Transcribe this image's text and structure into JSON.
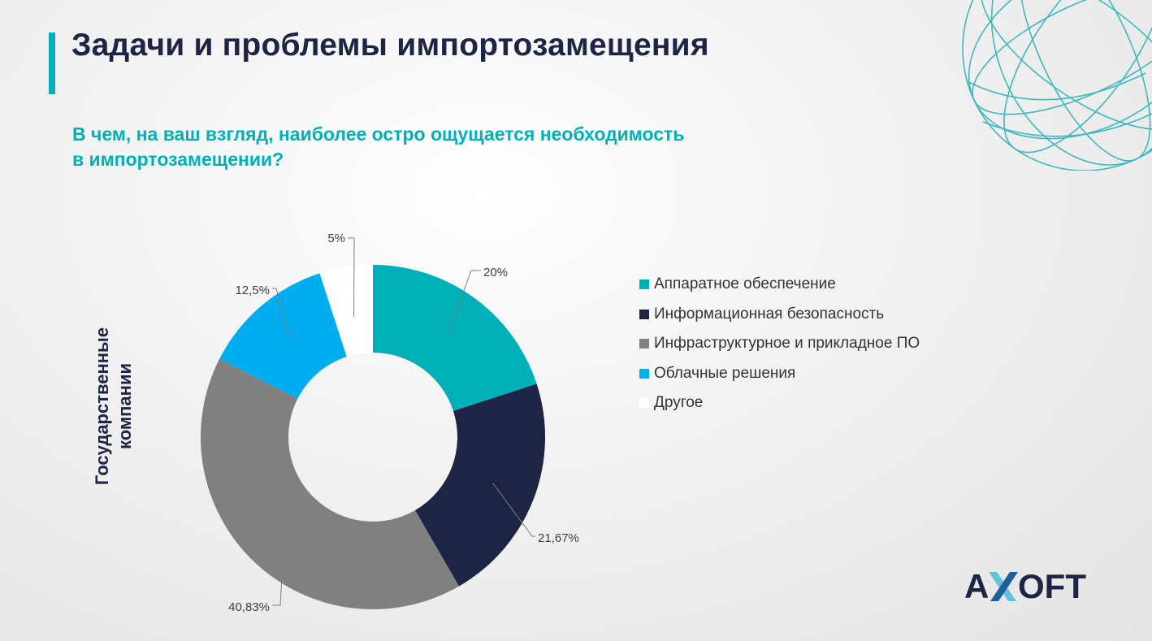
{
  "title": "Задачи и проблемы импортозамещения",
  "question": [
    "В чем, на ваш взгляд, наиболее остро ощущается необходимость",
    "в импортозамещении?"
  ],
  "side_label": [
    "Государственные",
    "компании"
  ],
  "logo_text": "AXOFT",
  "colors": {
    "accent": "#00b0b9",
    "title": "#1e2544",
    "logo_x_light": "#5fc5d6",
    "logo_x_dark": "#1e5f9e"
  },
  "chart_data": {
    "type": "pie",
    "donut": true,
    "start_angle_deg": 0,
    "direction": "clockwise",
    "slices": [
      {
        "label": "Аппаратное обеспечение",
        "value": 20,
        "display": "20%",
        "color": "#00b0b9"
      },
      {
        "label": "Информационная безопасность",
        "value": 21.67,
        "display": "21,67%",
        "color": "#1e2544"
      },
      {
        "label": "Инфраструктурное и прикладное ПО",
        "value": 40.83,
        "display": "40,83%",
        "color": "#808080"
      },
      {
        "label": "Облачные решения",
        "value": 12.5,
        "display": "12,5%",
        "color": "#00aeef"
      },
      {
        "label": "Другое",
        "value": 5,
        "display": "5%",
        "color": "#ffffff"
      }
    ],
    "legend": {
      "position": "right"
    }
  }
}
